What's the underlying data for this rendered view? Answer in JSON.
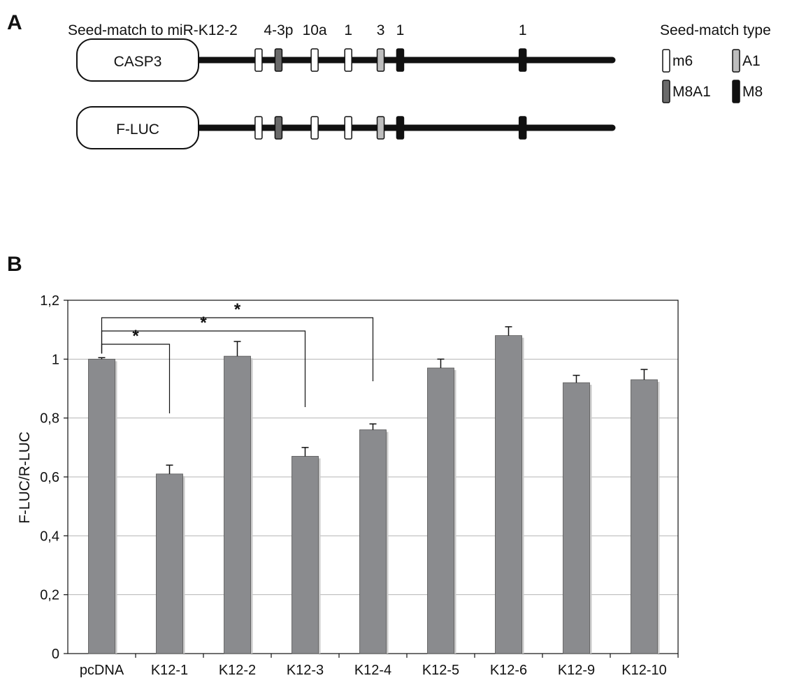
{
  "panel_a": {
    "letter": "A",
    "seed_header": "Seed-match to miR-K12-2",
    "site_labels": [
      "4-3p",
      "10a",
      "1",
      "3",
      "1",
      "1"
    ],
    "genes": [
      {
        "name": "CASP3"
      },
      {
        "name": "F-LUC"
      }
    ],
    "sites": [
      {
        "pos": 0.148,
        "type": "m6"
      },
      {
        "pos": 0.196,
        "type": "M8A1"
      },
      {
        "pos": 0.283,
        "type": "m6"
      },
      {
        "pos": 0.364,
        "type": "m6"
      },
      {
        "pos": 0.442,
        "type": "A1"
      },
      {
        "pos": 0.489,
        "type": "M8"
      },
      {
        "pos": 0.784,
        "type": "M8"
      }
    ],
    "legend": {
      "title": "Seed-match type",
      "items": [
        {
          "key": "m6",
          "label": "m6",
          "color": "#ffffff"
        },
        {
          "key": "A1",
          "label": "A1",
          "color": "#bdbdbd"
        },
        {
          "key": "M8A1",
          "label": "M8A1",
          "color": "#6a6a6a"
        },
        {
          "key": "M8",
          "label": "M8",
          "color": "#111111"
        }
      ]
    }
  },
  "panel_b": {
    "letter": "B",
    "significance_marker": "*"
  },
  "chart_data": {
    "type": "bar",
    "categories": [
      "pcDNA",
      "K12-1",
      "K12-2",
      "K12-3",
      "K12-4",
      "K12-5",
      "K12-6",
      "K12-9",
      "K12-10"
    ],
    "values": [
      1.0,
      0.61,
      1.01,
      0.67,
      0.76,
      0.97,
      1.08,
      0.92,
      0.93
    ],
    "errors": [
      0.005,
      0.03,
      0.05,
      0.03,
      0.02,
      0.03,
      0.03,
      0.025,
      0.035
    ],
    "ylabel": "F-LUC/R-LUC",
    "xlabel": "",
    "ylim": [
      0,
      1.2
    ],
    "yticks": [
      "0",
      "0,2",
      "0,4",
      "0,6",
      "0,8",
      "1",
      "1,2"
    ],
    "grid": true,
    "bar_color": "#8a8b8e",
    "comparisons": [
      {
        "from": "pcDNA",
        "to": "K12-1",
        "label": "*"
      },
      {
        "from": "pcDNA",
        "to": "K12-3",
        "label": "*"
      },
      {
        "from": "pcDNA",
        "to": "K12-4",
        "label": "*"
      }
    ]
  }
}
